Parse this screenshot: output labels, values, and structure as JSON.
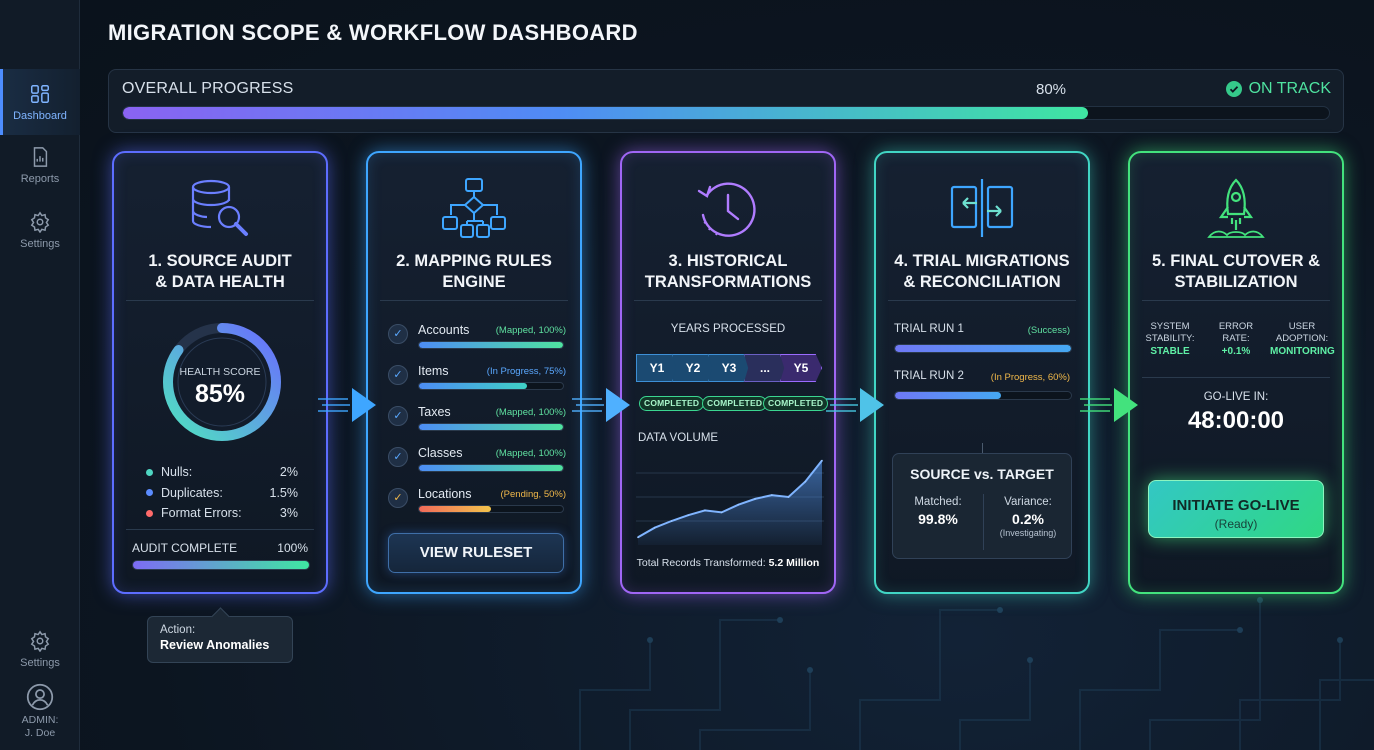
{
  "sidebar": {
    "items": [
      {
        "label": "Dashboard",
        "icon": "dashboard-icon"
      },
      {
        "label": "Reports",
        "icon": "reports-icon"
      },
      {
        "label": "Settings",
        "icon": "settings-icon"
      }
    ],
    "bottom": {
      "settings_label": "Settings",
      "user_line1": "ADMIN:",
      "user_line2": "J. Doe"
    }
  },
  "header": {
    "title": "MIGRATION SCOPE & WORKFLOW DASHBOARD"
  },
  "overall": {
    "label": "OVERALL PROGRESS",
    "value_text": "80%",
    "progress": 0.8,
    "status": "ON TRACK",
    "status_color": "#4fe3a0"
  },
  "cards": {
    "c1": {
      "title": "1. SOURCE AUDIT\n& DATA HEALTH",
      "icon": "database-search-icon",
      "score_label": "HEALTH SCORE",
      "score_text": "85%",
      "score": 0.85,
      "stats": [
        {
          "label": "Nulls:",
          "value": "2%",
          "color": "#4fd6c2"
        },
        {
          "label": "Duplicates:",
          "value": "1.5%",
          "color": "#5b8cff"
        },
        {
          "label": "Format Errors:",
          "value": "3%",
          "color": "#ff6a6a"
        }
      ],
      "audit_label": "AUDIT COMPLETE",
      "audit_value": "100%",
      "audit": 1.0
    },
    "c2": {
      "title": "2. MAPPING RULES\nENGINE",
      "icon": "flowchart-icon",
      "rules": [
        {
          "name": "Accounts",
          "status": "(Mapped, 100%)",
          "progress": 1.0,
          "status_color": "#5fe0a0",
          "fill": "linear-gradient(90deg,#4d8df5,#4fe3a0)"
        },
        {
          "name": "Items",
          "status": "(In Progress, 75%)",
          "progress": 0.75,
          "status_color": "#5aa8ff",
          "fill": "linear-gradient(90deg,#4d8df5,#3fd1c6)"
        },
        {
          "name": "Taxes",
          "status": "(Mapped, 100%)",
          "progress": 1.0,
          "status_color": "#5fe0a0",
          "fill": "linear-gradient(90deg,#4d8df5,#4fe3a0)"
        },
        {
          "name": "Classes",
          "status": "(Mapped, 100%)",
          "progress": 1.0,
          "status_color": "#5fe0a0",
          "fill": "linear-gradient(90deg,#4d8df5,#4fe3a0)"
        },
        {
          "name": "Locations",
          "status": "(Pending, 50%)",
          "progress": 0.5,
          "status_color": "#f0b84a",
          "fill": "linear-gradient(90deg,#f06a5a,#f3c44c)"
        }
      ],
      "button_label": "VIEW RULESET"
    },
    "c3": {
      "title": "3. HISTORICAL\nTRANSFORMATIONS",
      "icon": "history-clock-icon",
      "years_label": "YEARS PROCESSED",
      "years": [
        "Y1",
        "Y2",
        "Y3",
        "...",
        "Y5"
      ],
      "badge": "COMPLETED",
      "volume_label": "DATA VOLUME",
      "total_prefix": "Total Records Transformed: ",
      "total_value": "5.2 Million"
    },
    "c4": {
      "title": "4. TRIAL MIGRATIONS\n& RECONCILIATION",
      "icon": "compare-arrows-icon",
      "runs": [
        {
          "label": "TRIAL RUN 1",
          "status": "(Success)",
          "progress": 1.0,
          "status_color": "#5fe0a0"
        },
        {
          "label": "TRIAL RUN 2",
          "status": "(In Progress, 60%)",
          "progress": 0.6,
          "status_color": "#f0b84a"
        }
      ],
      "svt_title": "SOURCE vs. TARGET",
      "matched_label": "Matched:",
      "matched_value": "99.8%",
      "variance_label": "Variance:",
      "variance_value": "0.2%",
      "variance_note": "(Investigating)"
    },
    "c5": {
      "title": "5. FINAL CUTOVER &\nSTABILIZATION",
      "icon": "rocket-icon",
      "system": [
        {
          "k": "SYSTEM\nSTABILITY:",
          "v": "STABLE"
        },
        {
          "k": "ERROR\nRATE:",
          "v": "+0.1%"
        },
        {
          "k": "USER\nADOPTION:",
          "v": "MONITORING"
        }
      ],
      "golive_label": "GO-LIVE IN:",
      "countdown": "48:00:00",
      "button_label": "INITIATE GO-LIVE",
      "button_sub": "(Ready)"
    }
  },
  "tooltip": {
    "line1": "Action:",
    "line2": "Review Anomalies"
  },
  "chart_data": {
    "type": "area",
    "title": "DATA VOLUME",
    "x": [
      1,
      2,
      3,
      4,
      5,
      6,
      7,
      8,
      9,
      10,
      11,
      12
    ],
    "y": [
      8,
      18,
      25,
      31,
      36,
      34,
      42,
      48,
      52,
      50,
      66,
      88
    ],
    "ylim": [
      0,
      100
    ]
  }
}
